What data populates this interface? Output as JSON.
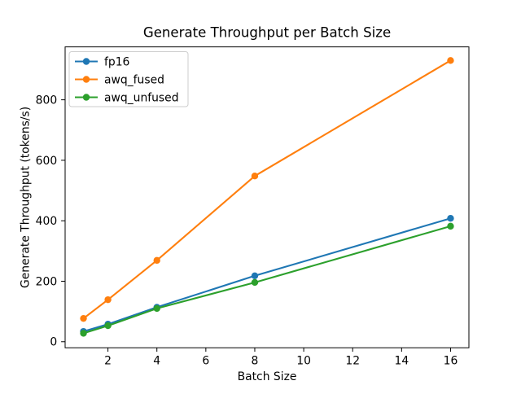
{
  "figure": {
    "background": "#ffffff",
    "text_color": "#000000",
    "axis_color": "#000000"
  },
  "chart_data": {
    "type": "line",
    "title": "Generate Throughput per Batch Size",
    "xlabel": "Batch Size",
    "ylabel": "Generate Throughput (tokens/s)",
    "x": [
      1,
      2,
      4,
      8,
      16
    ],
    "series": [
      {
        "name": "fp16",
        "color": "#1f77b4",
        "values": [
          34,
          58,
          114,
          218,
          408
        ]
      },
      {
        "name": "awq_fused",
        "color": "#ff7f0e",
        "values": [
          77,
          139,
          269,
          548,
          930
        ]
      },
      {
        "name": "awq_unfused",
        "color": "#2ca02c",
        "values": [
          28,
          53,
          110,
          196,
          382
        ]
      }
    ],
    "xlim": [
      0.25,
      16.75
    ],
    "ylim": [
      -20,
      975
    ],
    "xticks": [
      2,
      4,
      6,
      8,
      10,
      12,
      14,
      16
    ],
    "yticks": [
      0,
      200,
      400,
      600,
      800
    ],
    "grid": false,
    "legend_position": "upper left",
    "legend_entries": [
      "fp16",
      "awq_fused",
      "awq_unfused"
    ],
    "marker": "circle",
    "line_style": "solid"
  }
}
